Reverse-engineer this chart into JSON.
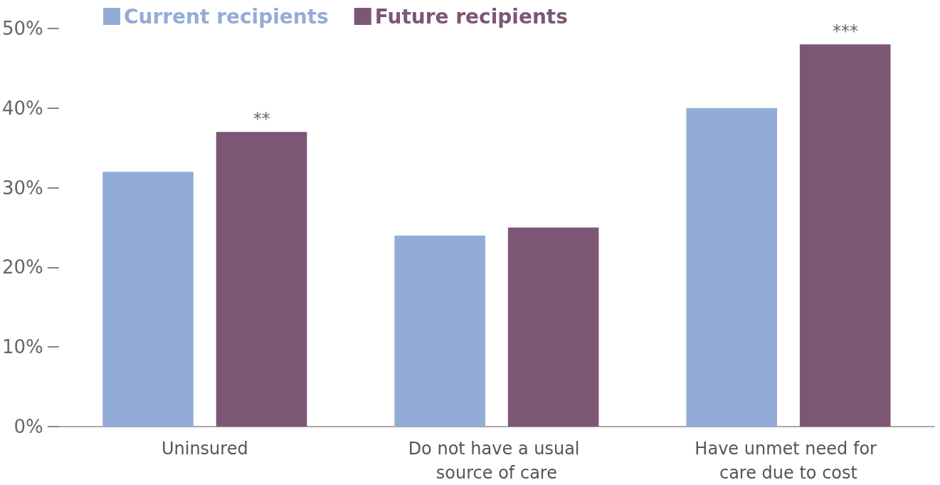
{
  "chart_data": {
    "type": "bar",
    "categories": [
      "Uninsured",
      "Do not have a usual source of care",
      "Have unmet need for care due to cost"
    ],
    "series": [
      {
        "name": "Current recipients",
        "color": "#93acd7",
        "values": [
          32,
          24,
          40
        ]
      },
      {
        "name": "Future recipients",
        "color": "#7d5675",
        "values": [
          37,
          25,
          48
        ]
      }
    ],
    "ylim": [
      0,
      50
    ],
    "yticks": [
      {
        "value": 0,
        "label": "0%"
      },
      {
        "value": 10,
        "label": "10%"
      },
      {
        "value": 20,
        "label": "20%"
      },
      {
        "value": 30,
        "label": "30%"
      },
      {
        "value": 40,
        "label": "40%"
      },
      {
        "value": 50,
        "label": "50%"
      }
    ],
    "annotations": [
      "**",
      "***"
    ],
    "grid": false,
    "legend": "top left"
  }
}
